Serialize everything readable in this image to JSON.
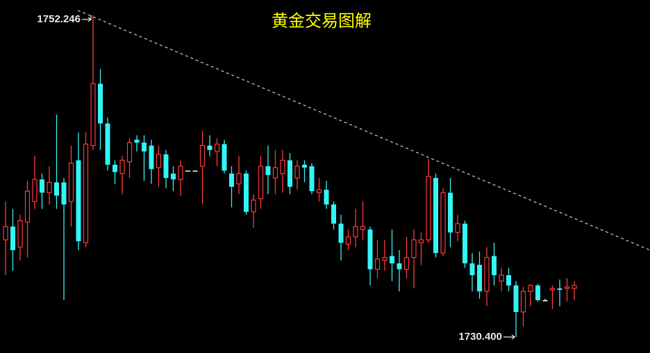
{
  "chart_data": {
    "type": "candlestick",
    "title": "黄金交易图解",
    "high_label": "1752.246",
    "low_label": "1730.400",
    "up_color": "#ff3b3b",
    "down_color": "#33f5f5",
    "flat_color": "#ffffff",
    "open": [
      1737.0,
      1737.9,
      1736.5,
      1738.2,
      1739.6,
      1741.1,
      1740.2,
      1740.9,
      1740.9,
      1739.6,
      1742.4,
      1736.8,
      1743.4,
      1747.6,
      1744.9,
      1742.1,
      1741.5,
      1742.3,
      1743.8,
      1743.6,
      1743.4,
      1741.9,
      1742.8,
      1741.5,
      1741.1,
      1741.7,
      1741.7,
      1742.0,
      1743.4,
      1743.0,
      1743.5,
      1741.5,
      1740.8,
      1741.5,
      1738.9,
      1739.8,
      1742.0,
      1741.2,
      1741.5,
      1742.4,
      1741.2,
      1742.1,
      1742.0,
      1740.2,
      1740.4,
      1739.4,
      1738.1,
      1736.7,
      1737.2,
      1737.7,
      1737.7,
      1735.0,
      1735.6,
      1735.9,
      1735.4,
      1735.0,
      1735.8,
      1736.8,
      1737.0,
      1741.2,
      1736.1,
      1740.2,
      1737.5,
      1738.1,
      1735.4,
      1735.3,
      1733.5,
      1735.9,
      1734.2,
      1734.6,
      1733.9,
      1732.1,
      1733.5,
      1733.9,
      1732.9,
      1733.6,
      1733.7,
      1733.7,
      1733.7
    ],
    "high": [
      1739.6,
      1739.1,
      1738.7,
      1741.0,
      1742.7,
      1741.5,
      1742.0,
      1745.5,
      1741.2,
      1743.4,
      1744.3,
      1744.3,
      1752.246,
      1748.6,
      1745.3,
      1742.4,
      1742.7,
      1743.9,
      1744.1,
      1744.1,
      1743.8,
      1743.4,
      1743.1,
      1742.0,
      1742.4,
      1741.7,
      1741.7,
      1744.4,
      1744.1,
      1743.9,
      1743.8,
      1742.0,
      1742.7,
      1741.7,
      1740.1,
      1742.7,
      1743.4,
      1743.1,
      1743.1,
      1742.9,
      1742.4,
      1742.4,
      1742.2,
      1741.2,
      1741.0,
      1739.6,
      1738.7,
      1737.7,
      1739.1,
      1739.6,
      1737.9,
      1737.0,
      1737.0,
      1737.7,
      1736.3,
      1737.2,
      1737.7,
      1737.5,
      1742.5,
      1741.5,
      1740.5,
      1741.2,
      1738.7,
      1738.3,
      1736.1,
      1736.2,
      1736.5,
      1736.8,
      1735.1,
      1735.1,
      1734.2,
      1733.8,
      1734.0,
      1734.0,
      1733.0,
      1733.9,
      1734.3,
      1734.4,
      1734.2
    ],
    "low": [
      1734.6,
      1734.9,
      1735.6,
      1735.8,
      1739.1,
      1739.1,
      1739.4,
      1739.1,
      1732.9,
      1737.9,
      1736.3,
      1736.5,
      1743.1,
      1743.1,
      1741.7,
      1740.8,
      1740.1,
      1741.2,
      1743.0,
      1741.0,
      1740.8,
      1740.6,
      1740.5,
      1740.3,
      1740.0,
      1741.7,
      1741.7,
      1739.4,
      1742.7,
      1742.0,
      1741.5,
      1739.2,
      1740.1,
      1738.7,
      1737.8,
      1739.1,
      1740.1,
      1740.1,
      1740.2,
      1740.1,
      1740.4,
      1740.9,
      1740.1,
      1739.6,
      1739.1,
      1737.7,
      1735.6,
      1736.3,
      1736.5,
      1737.0,
      1733.9,
      1734.4,
      1734.9,
      1734.2,
      1733.5,
      1734.4,
      1733.7,
      1735.3,
      1736.8,
      1735.8,
      1735.9,
      1736.5,
      1736.9,
      1735.1,
      1733.5,
      1733.0,
      1732.5,
      1733.9,
      1733.5,
      1733.5,
      1730.4,
      1731.1,
      1732.5,
      1732.8,
      1732.9,
      1732.3,
      1732.5,
      1732.8,
      1732.9
    ],
    "close": [
      1737.9,
      1736.3,
      1738.3,
      1740.3,
      1741.1,
      1740.2,
      1740.9,
      1740.0,
      1739.4,
      1742.2,
      1736.9,
      1743.5,
      1747.6,
      1744.9,
      1742.1,
      1741.6,
      1742.4,
      1743.6,
      1743.6,
      1743.0,
      1741.8,
      1742.8,
      1741.2,
      1741.1,
      1742.0,
      1741.7,
      1741.7,
      1743.4,
      1743.1,
      1743.5,
      1741.7,
      1740.6,
      1741.5,
      1738.9,
      1739.7,
      1742.0,
      1741.4,
      1741.9,
      1742.4,
      1740.6,
      1742.0,
      1741.9,
      1740.3,
      1740.4,
      1739.4,
      1738.1,
      1736.8,
      1737.2,
      1737.9,
      1737.9,
      1735.0,
      1735.7,
      1735.8,
      1735.4,
      1735.0,
      1735.8,
      1737.0,
      1737.0,
      1741.3,
      1736.1,
      1740.2,
      1737.5,
      1738.1,
      1735.4,
      1734.6,
      1733.5,
      1735.8,
      1734.6,
      1734.6,
      1733.9,
      1732.1,
      1733.5,
      1733.9,
      1732.9,
      1732.9,
      1733.7,
      1733.6,
      1733.8,
      1733.9
    ]
  }
}
